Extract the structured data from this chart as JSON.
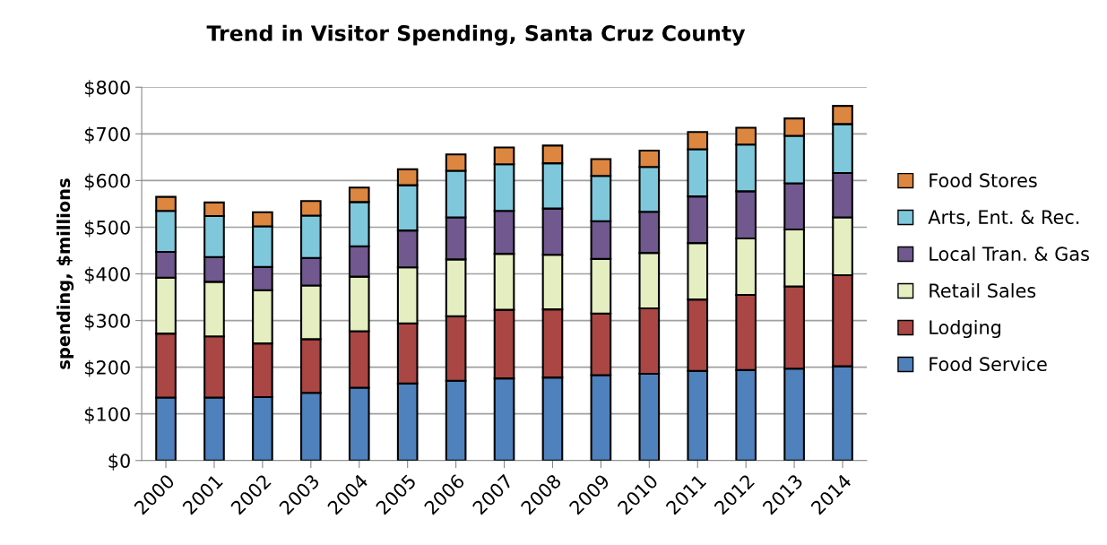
{
  "chart_data": {
    "type": "bar",
    "title": "Trend in Visitor Spending, Santa Cruz County",
    "ylabel": "spending, $millions",
    "categories": [
      "2000",
      "2001",
      "2002",
      "2003",
      "2004",
      "2005",
      "2006",
      "2007",
      "2008",
      "2009",
      "2010",
      "2011",
      "2012",
      "2013",
      "2014"
    ],
    "stacked": true,
    "series": [
      {
        "name": "Food Service",
        "color": "#4f81bd",
        "values": [
          135,
          135,
          136,
          145,
          156,
          165,
          171,
          176,
          178,
          183,
          186,
          192,
          194,
          197,
          202
        ]
      },
      {
        "name": "Lodging",
        "color": "#aa4644",
        "values": [
          137,
          131,
          115,
          115,
          121,
          129,
          138,
          147,
          146,
          132,
          140,
          153,
          161,
          176,
          195
        ]
      },
      {
        "name": "Retail Sales",
        "color": "#e4eec0",
        "values": [
          120,
          117,
          114,
          115,
          117,
          120,
          122,
          120,
          117,
          117,
          119,
          121,
          121,
          122,
          124
        ]
      },
      {
        "name": "Local Tran. & Gas",
        "color": "#71588f",
        "values": [
          55,
          53,
          50,
          59,
          65,
          79,
          90,
          92,
          99,
          81,
          88,
          100,
          101,
          99,
          95
        ]
      },
      {
        "name": "Arts, Ent. & Rec.",
        "color": "#7fc8dc",
        "values": [
          88,
          88,
          87,
          91,
          95,
          97,
          100,
          100,
          97,
          97,
          96,
          101,
          100,
          102,
          105
        ]
      },
      {
        "name": "Food Stores",
        "color": "#dd8640",
        "values": [
          30,
          29,
          30,
          31,
          31,
          34,
          35,
          36,
          38,
          36,
          35,
          37,
          36,
          37,
          39
        ]
      }
    ],
    "ylim": [
      0,
      800
    ],
    "yticks": [
      {
        "value": 0,
        "label": "$0"
      },
      {
        "value": 100,
        "label": "$100"
      },
      {
        "value": 200,
        "label": "$200"
      },
      {
        "value": 300,
        "label": "$300"
      },
      {
        "value": 400,
        "label": "$400"
      },
      {
        "value": 500,
        "label": "$500"
      },
      {
        "value": 600,
        "label": "$600"
      },
      {
        "value": 700,
        "label": "$700"
      },
      {
        "value": 800,
        "label": "$800"
      }
    ],
    "grid": "y",
    "legend": "right"
  }
}
